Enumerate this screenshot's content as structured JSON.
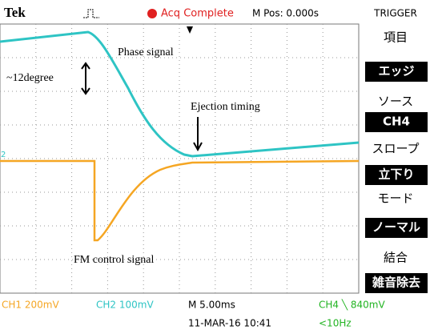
{
  "header": {
    "logo": "Tek",
    "acquisition": "Acq Complete",
    "position": "M Pos: 0.000s",
    "menu_title": "TRIGGER"
  },
  "menu": [
    {
      "label": "項目",
      "value": "エッジ"
    },
    {
      "label": "ソース",
      "value": "CH4"
    },
    {
      "label": "スロープ",
      "value": "立下り"
    },
    {
      "label": "モード",
      "value": "ノーマル"
    },
    {
      "label": "結合",
      "value": "雑音除去"
    }
  ],
  "annotations": {
    "phase": "Phase signal",
    "degree": "~12degree",
    "ejection": "Ejection timing",
    "fm": "FM control signal",
    "channel_marker": "2"
  },
  "footer": {
    "ch1": "CH1 200mV",
    "ch2": "CH2 100mV",
    "timebase": "M 5.00ms",
    "trigger": "CH4 ╲ 840mV",
    "date": "11-MAR-16 10:41",
    "frequency": "<10Hz"
  }
}
